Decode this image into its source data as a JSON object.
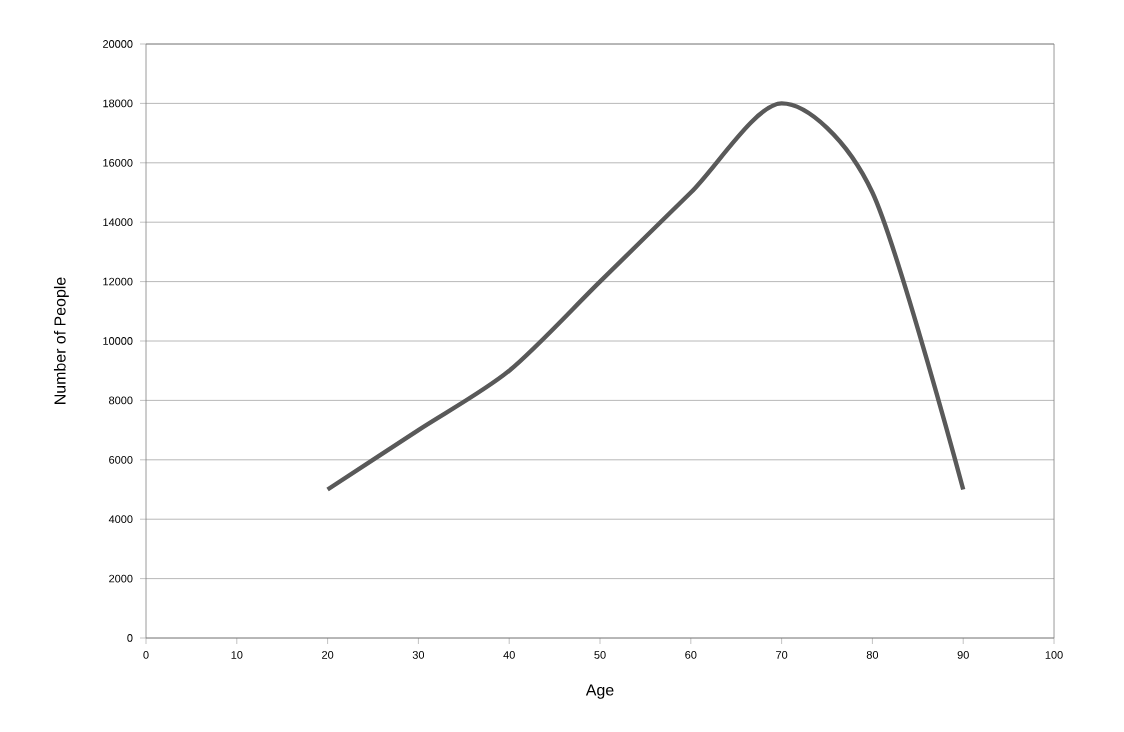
{
  "chart_data": {
    "type": "line",
    "xlabel": "Age",
    "ylabel": "Number of People",
    "x": [
      20,
      30,
      40,
      50,
      60,
      70,
      80,
      90
    ],
    "series": [
      {
        "color": "#595959",
        "values": [
          5000,
          7000,
          9000,
          12000,
          15000,
          18000,
          15000,
          5000
        ]
      }
    ],
    "xlim": [
      0,
      100
    ],
    "ylim": [
      0,
      20000
    ],
    "xticks": [
      0,
      10,
      20,
      30,
      40,
      50,
      60,
      70,
      80,
      90,
      100
    ],
    "yticks": [
      0,
      2000,
      4000,
      6000,
      8000,
      10000,
      12000,
      14000,
      16000,
      18000,
      20000
    ],
    "grid": "y",
    "marker": "none",
    "line_style": "solid"
  }
}
